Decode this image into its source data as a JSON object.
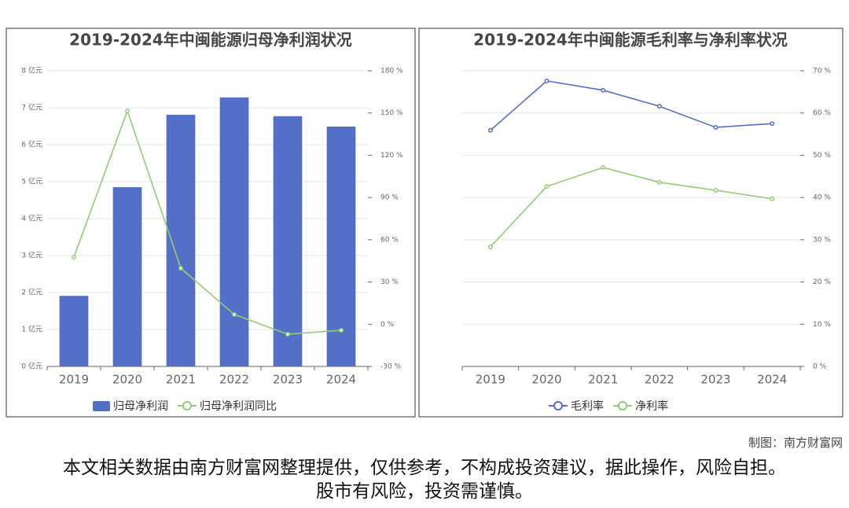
{
  "chart_data": [
    {
      "type": "bar",
      "title": "2019-2024年中闽能源归母净利润状况",
      "categories": [
        "2019",
        "2020",
        "2021",
        "2022",
        "2023",
        "2024"
      ],
      "series": [
        {
          "name": "归母净利润",
          "type": "bar",
          "color": "#5470c6",
          "values": [
            1.91,
            4.85,
            6.81,
            7.28,
            6.77,
            6.49
          ]
        },
        {
          "name": "归母净利润同比",
          "type": "line",
          "axis": "y2",
          "color": "#91cc75",
          "values": [
            47.6,
            151.5,
            39.8,
            6.9,
            -7.1,
            -4.3
          ]
        }
      ],
      "ylim": [
        0,
        8
      ],
      "yticks": [
        {
          "value": 0,
          "label": "0 亿元"
        },
        {
          "value": 1,
          "label": "1 亿元"
        },
        {
          "value": 2,
          "label": "2 亿元"
        },
        {
          "value": 3,
          "label": "3 亿元"
        },
        {
          "value": 4,
          "label": "4 亿元"
        },
        {
          "value": 5,
          "label": "5 亿元"
        },
        {
          "value": 6,
          "label": "6 亿元"
        },
        {
          "value": 7,
          "label": "7 亿元"
        },
        {
          "value": 8,
          "label": "8 亿元"
        }
      ],
      "y2lim": [
        -30,
        180
      ],
      "y2ticks": [
        {
          "value": -30,
          "label": "-30 %"
        },
        {
          "value": 0,
          "label": "0 %"
        },
        {
          "value": 30,
          "label": "30 %"
        },
        {
          "value": 60,
          "label": "60 %"
        },
        {
          "value": 90,
          "label": "90 %"
        },
        {
          "value": 120,
          "label": "120 %"
        },
        {
          "value": 150,
          "label": "150 %"
        },
        {
          "value": 180,
          "label": "180 %"
        }
      ],
      "grid": true
    },
    {
      "type": "line",
      "title": "2019-2024年中闽能源毛利率与净利率状况",
      "categories": [
        "2019",
        "2020",
        "2021",
        "2022",
        "2023",
        "2024"
      ],
      "series": [
        {
          "name": "毛利率",
          "type": "line",
          "axis": "y2",
          "color": "#5470c6",
          "values": [
            55.9,
            67.6,
            65.4,
            61.6,
            56.6,
            57.5
          ]
        },
        {
          "name": "净利率",
          "type": "line",
          "axis": "y2",
          "color": "#91cc75",
          "values": [
            28.3,
            42.6,
            47.1,
            43.6,
            41.7,
            39.7
          ]
        }
      ],
      "y2lim": [
        0,
        70
      ],
      "y2ticks": [
        {
          "value": 0,
          "label": "0 %"
        },
        {
          "value": 10,
          "label": "10 %"
        },
        {
          "value": 20,
          "label": "20 %"
        },
        {
          "value": 30,
          "label": "30 %"
        },
        {
          "value": 40,
          "label": "40 %"
        },
        {
          "value": 50,
          "label": "50 %"
        },
        {
          "value": 60,
          "label": "60 %"
        },
        {
          "value": 70,
          "label": "70 %"
        }
      ],
      "grid": true
    }
  ],
  "credit": "制图：南方财富网",
  "disclaimer": "本文相关数据由南方财富网整理提供，仅供参考，不构成投资建议，据此操作，风险自担。股市有风险，投资需谨慎。"
}
